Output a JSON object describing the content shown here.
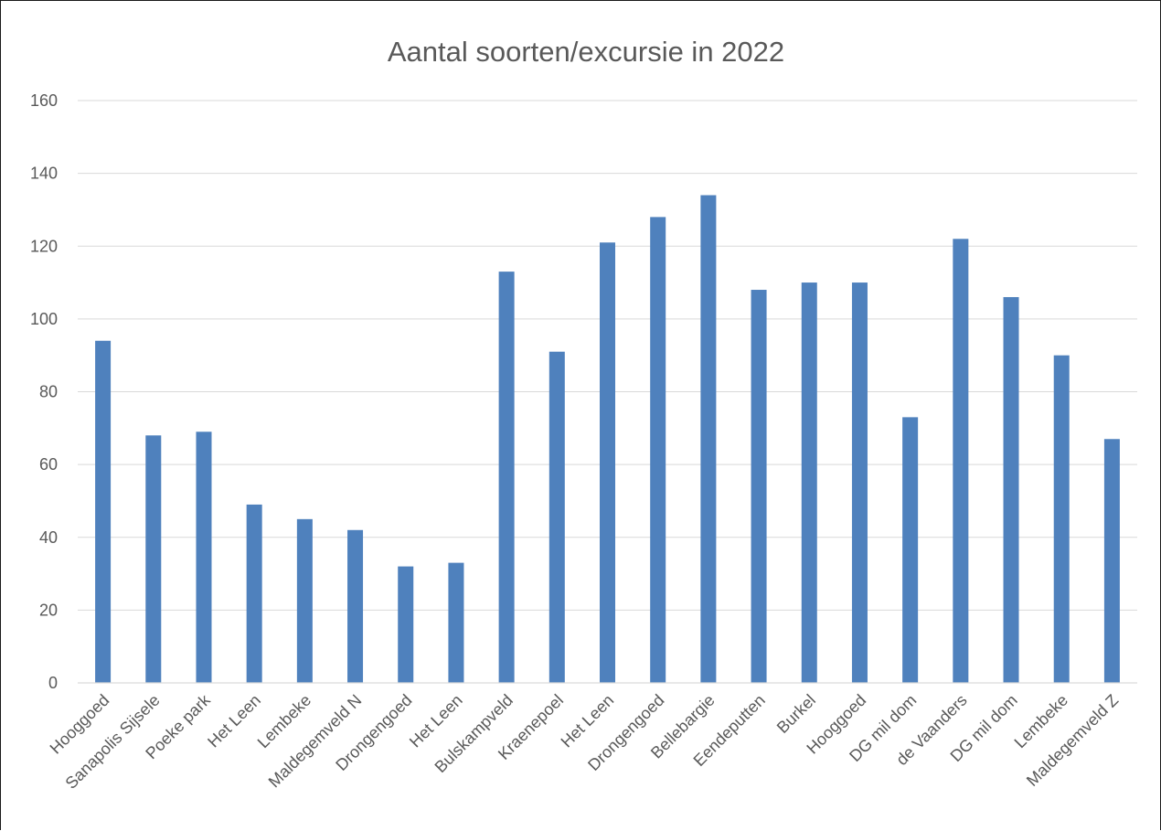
{
  "chart_data": {
    "type": "bar",
    "title": "Aantal soorten/excursie in 2022",
    "xlabel": "",
    "ylabel": "",
    "ylim": [
      0,
      160
    ],
    "yticks": [
      0,
      20,
      40,
      60,
      80,
      100,
      120,
      140,
      160
    ],
    "grid": true,
    "legend": "none",
    "bar_color": "#4f81bd",
    "categories": [
      "Hooggoed",
      "Sanapolis Sijsele",
      "Poeke park",
      "Het Leen",
      "Lembeke",
      "Maldegemveld N",
      "Drongengoed",
      "Het Leen",
      "Bulskampveld",
      "Kraenepoel",
      "Het Leen",
      "Drongengoed",
      "Bellebargie",
      "Eendeputten",
      "Burkel",
      "Hooggoed",
      "DG mil dom",
      "de Vaanders",
      "DG mil dom",
      "Lembeke",
      "Maldegemveld Z"
    ],
    "values": [
      94,
      68,
      69,
      49,
      45,
      42,
      32,
      33,
      113,
      91,
      121,
      128,
      134,
      108,
      110,
      110,
      73,
      122,
      106,
      90,
      67
    ]
  }
}
